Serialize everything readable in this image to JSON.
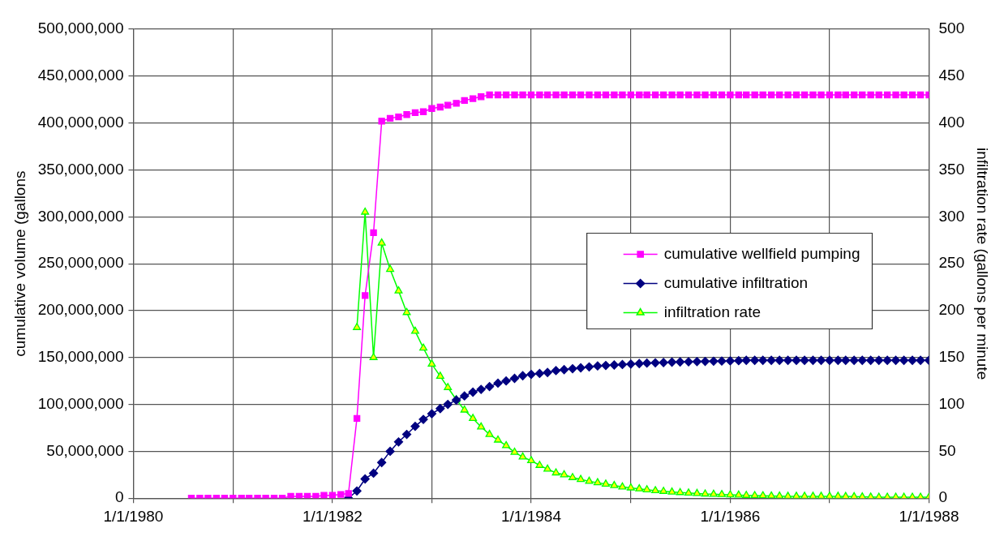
{
  "chart_data": {
    "type": "line",
    "xlim": [
      "1980-01-01",
      "1988-01-01"
    ],
    "xticks": [
      {
        "value": "1980-01-01",
        "label": "1/1/1980"
      },
      {
        "value": "1981-01-01",
        "label": null
      },
      {
        "value": "1982-01-01",
        "label": "1/1/1982"
      },
      {
        "value": "1983-01-01",
        "label": null
      },
      {
        "value": "1984-01-01",
        "label": "1/1/1984"
      },
      {
        "value": "1985-01-01",
        "label": null
      },
      {
        "value": "1986-01-01",
        "label": "1/1/1986"
      },
      {
        "value": "1987-01-01",
        "label": null
      },
      {
        "value": "1988-01-01",
        "label": "1/1/1988"
      }
    ],
    "ylim": [
      0,
      500000000
    ],
    "yticks": [
      {
        "value": 0,
        "label": "0"
      },
      {
        "value": 50000000,
        "label": "50,000,000"
      },
      {
        "value": 100000000,
        "label": "100,000,000"
      },
      {
        "value": 150000000,
        "label": "150,000,000"
      },
      {
        "value": 200000000,
        "label": "200,000,000"
      },
      {
        "value": 250000000,
        "label": "250,000,000"
      },
      {
        "value": 300000000,
        "label": "300,000,000"
      },
      {
        "value": 350000000,
        "label": "350,000,000"
      },
      {
        "value": 400000000,
        "label": "400,000,000"
      },
      {
        "value": 450000000,
        "label": "450,000,000"
      },
      {
        "value": 500000000,
        "label": "500,000,000"
      }
    ],
    "y2lim": [
      0,
      500
    ],
    "y2ticks": [
      0,
      50,
      100,
      150,
      200,
      250,
      300,
      350,
      400,
      450,
      500
    ],
    "ylabel": "cumulative volume (gallons",
    "y2label": "infiltration rate (gallons per minute",
    "grid": true,
    "legend": "right",
    "x": [
      "1980-08",
      "1980-09",
      "1980-10",
      "1980-11",
      "1980-12",
      "1981-01",
      "1981-02",
      "1981-03",
      "1981-04",
      "1981-05",
      "1981-06",
      "1981-07",
      "1981-08",
      "1981-09",
      "1981-10",
      "1981-11",
      "1981-12",
      "1982-01",
      "1982-02",
      "1982-03",
      "1982-04",
      "1982-05",
      "1982-06",
      "1982-07",
      "1982-08",
      "1982-09",
      "1982-10",
      "1982-11",
      "1982-12",
      "1983-01",
      "1983-02",
      "1983-03",
      "1983-04",
      "1983-05",
      "1983-06",
      "1983-07",
      "1983-08",
      "1983-09",
      "1983-10",
      "1983-11",
      "1983-12",
      "1984-01",
      "1984-02",
      "1984-03",
      "1984-04",
      "1984-05",
      "1984-06",
      "1984-07",
      "1984-08",
      "1984-09",
      "1984-10",
      "1984-11",
      "1984-12",
      "1985-01",
      "1985-02",
      "1985-03",
      "1985-04",
      "1985-05",
      "1985-06",
      "1985-07",
      "1985-08",
      "1985-09",
      "1985-10",
      "1985-11",
      "1985-12",
      "1986-01",
      "1986-02",
      "1986-03",
      "1986-04",
      "1986-05",
      "1986-06",
      "1986-07",
      "1986-08",
      "1986-09",
      "1986-10",
      "1986-11",
      "1986-12",
      "1987-01",
      "1987-02",
      "1987-03",
      "1987-04",
      "1987-05",
      "1987-06",
      "1987-07",
      "1987-08",
      "1987-09",
      "1987-10",
      "1987-11",
      "1987-12",
      "1988-01"
    ],
    "series": [
      {
        "name": "cumulative wellfield pumping",
        "color": "#ff00ff",
        "marker": "square",
        "values": [
          0,
          0,
          0,
          0,
          0,
          0,
          0,
          0,
          0,
          0,
          0,
          0,
          2000000,
          2000000,
          2000000,
          2000000,
          3000000,
          3000000,
          4000000,
          5000000,
          85000000,
          216000000,
          283000000,
          402000000,
          405000000,
          406500000,
          409000000,
          411000000,
          412000000,
          415500000,
          417000000,
          419000000,
          421000000,
          424000000,
          426000000,
          428000000,
          430000000,
          430000000,
          430000000,
          430000000,
          430000000,
          430000000,
          430000000,
          430000000,
          430000000,
          430000000,
          430000000,
          430000000,
          430000000,
          430000000,
          430000000,
          430000000,
          430000000,
          430000000,
          430000000,
          430000000,
          430000000,
          430000000,
          430000000,
          430000000,
          430000000,
          430000000,
          430000000,
          430000000,
          430000000,
          430000000,
          430000000,
          430000000,
          430000000,
          430000000,
          430000000,
          430000000,
          430000000,
          430000000,
          430000000,
          430000000,
          430000000,
          430000000,
          430000000,
          430000000,
          430000000,
          430000000,
          430000000,
          430000000,
          430000000,
          430000000,
          430000000,
          430000000,
          430000000,
          430000000
        ]
      },
      {
        "name": "cumulative infiltration",
        "color": "#000080",
        "marker": "diamond",
        "values": [
          null,
          null,
          null,
          null,
          null,
          null,
          null,
          null,
          null,
          null,
          null,
          null,
          null,
          null,
          null,
          null,
          null,
          null,
          null,
          0,
          7700000,
          20500000,
          26600000,
          38000000,
          50000000,
          60000000,
          68000000,
          76600000,
          84000000,
          90000000,
          95500000,
          100000000,
          104600000,
          109000000,
          113000000,
          116000000,
          119000000,
          122600000,
          125000000,
          127700000,
          130500000,
          132000000,
          133000000,
          134000000,
          136000000,
          137000000,
          138000000,
          139000000,
          140000000,
          141000000,
          141500000,
          142000000,
          142500000,
          143000000,
          143500000,
          144000000,
          144300000,
          144600000,
          145000000,
          145200000,
          145400000,
          145600000,
          145800000,
          146000000,
          146200000,
          146400000,
          146600000,
          147000000,
          147000000,
          147000000,
          147000000,
          147000000,
          147000000,
          147000000,
          147000000,
          147000000,
          147000000,
          147000000,
          147000000,
          147000000,
          147000000,
          147000000,
          147000000,
          147000000,
          147000000,
          147000000,
          147000000,
          147000000,
          147000000,
          147000000
        ]
      },
      {
        "name": "infiltration rate",
        "color": "#00ff00",
        "marker": "triangle",
        "axis": "y2",
        "values": [
          null,
          null,
          null,
          null,
          null,
          null,
          null,
          null,
          null,
          null,
          null,
          null,
          null,
          null,
          null,
          null,
          null,
          null,
          null,
          null,
          182,
          305,
          150,
          272,
          244,
          221,
          198,
          178,
          160,
          143,
          130,
          118,
          105,
          94,
          85,
          76,
          68,
          62,
          56,
          49,
          44,
          40,
          35,
          31,
          27,
          25,
          22,
          20,
          18,
          16.5,
          15,
          13.5,
          12,
          11,
          10,
          9,
          8,
          7.3,
          6.6,
          6,
          5.5,
          5,
          4.5,
          4.2,
          3.9,
          3.6,
          3.3,
          3,
          2.8,
          2.6,
          2.4,
          2.2,
          2,
          2,
          2,
          2,
          2,
          2,
          2,
          1.8,
          1.6,
          1.4,
          1.2,
          1,
          1,
          1,
          1,
          1,
          1,
          1
        ]
      }
    ]
  }
}
